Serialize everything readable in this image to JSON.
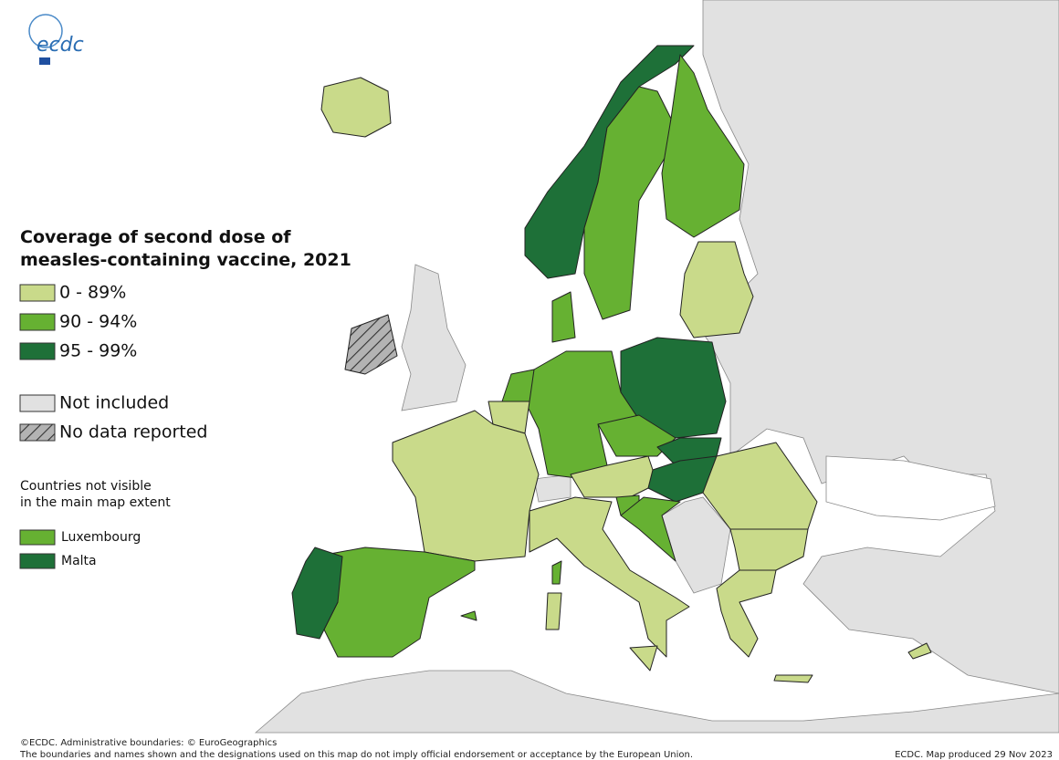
{
  "logo": {
    "text": "ecdc"
  },
  "legend": {
    "title": [
      "Coverage of second dose of",
      "measles-containing vaccine, 2021"
    ],
    "items": [
      {
        "label": "0 - 89%",
        "color": "#c9da8a"
      },
      {
        "label": "90 - 94%",
        "color": "#66b132"
      },
      {
        "label": "95 - 99%",
        "color": "#1e7038"
      }
    ],
    "other": [
      {
        "label": "Not included",
        "color": "#e1e1e1"
      },
      {
        "label": "No data reported",
        "color": "#b3b3b3",
        "pattern": "hatch"
      }
    ]
  },
  "inset": {
    "title": [
      "Countries not visible",
      "in the main map extent"
    ],
    "items": [
      {
        "label": "Luxembourg",
        "color": "#66b132"
      },
      {
        "label": "Malta",
        "color": "#1e7038"
      }
    ]
  },
  "footer": {
    "left": [
      "©ECDC. Administrative boundaries: © EuroGeographics",
      "The boundaries and names shown and the designations used on this map do not imply official endorsement or acceptance by the European Union."
    ],
    "right": "ECDC. Map produced 29 Nov 2023"
  }
}
